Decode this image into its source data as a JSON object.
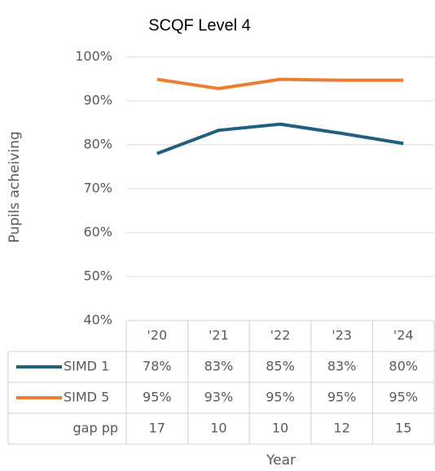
{
  "chart_data": {
    "type": "line",
    "title": "SCQF Level 4",
    "x_label": "Year",
    "y_label": "Pupils acheiving",
    "categories": [
      "'20",
      "'21",
      "'22",
      "'23",
      "'24"
    ],
    "series": [
      {
        "name": "SIMD 1",
        "color": "#1f5f80",
        "values": [
          78,
          83.3,
          84.7,
          82.6,
          80.3
        ],
        "value_labels": [
          "78%",
          "83%",
          "85%",
          "83%",
          "80%"
        ]
      },
      {
        "name": "SIMD 5",
        "color": "#ed7d31",
        "values": [
          94.9,
          92.8,
          94.9,
          94.7,
          94.7
        ],
        "value_labels": [
          "95%",
          "93%",
          "95%",
          "95%",
          "95%"
        ]
      }
    ],
    "gap": {
      "name": "gap pp",
      "values": [
        17,
        10,
        10,
        12,
        15
      ]
    },
    "ylim": [
      40,
      100
    ],
    "yticks": [
      {
        "value": 40,
        "label": "40%"
      },
      {
        "value": 50,
        "label": "50%"
      },
      {
        "value": 60,
        "label": "60%"
      },
      {
        "value": 70,
        "label": "70%"
      },
      {
        "value": 80,
        "label": "80%"
      },
      {
        "value": 90,
        "label": "90%"
      },
      {
        "value": 100,
        "label": "100%"
      }
    ],
    "grid": true
  }
}
